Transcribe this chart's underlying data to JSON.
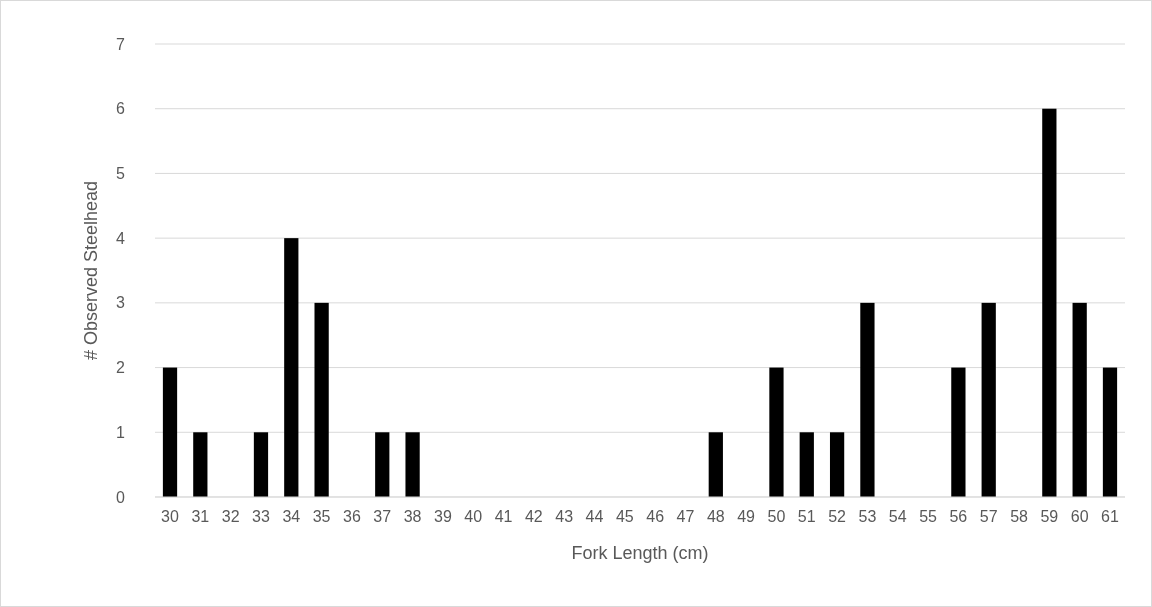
{
  "chart_data": {
    "type": "bar",
    "xlabel": "Fork Length (cm)",
    "ylabel": "# Observed Steelhead",
    "categories": [
      "30",
      "31",
      "32",
      "33",
      "34",
      "35",
      "36",
      "37",
      "38",
      "39",
      "40",
      "41",
      "42",
      "43",
      "44",
      "45",
      "46",
      "47",
      "48",
      "49",
      "50",
      "51",
      "52",
      "53",
      "54",
      "55",
      "56",
      "57",
      "58",
      "59",
      "60",
      "61"
    ],
    "values": [
      2,
      1,
      0,
      1,
      4,
      3,
      0,
      1,
      1,
      0,
      0,
      0,
      0,
      0,
      0,
      0,
      0,
      0,
      1,
      0,
      2,
      1,
      1,
      3,
      0,
      0,
      2,
      3,
      0,
      6,
      3,
      2
    ],
    "color": "#000000",
    "ylim": [
      0,
      7
    ],
    "yticks": [
      0,
      1,
      2,
      3,
      4,
      5,
      6,
      7
    ],
    "grid": "y"
  }
}
